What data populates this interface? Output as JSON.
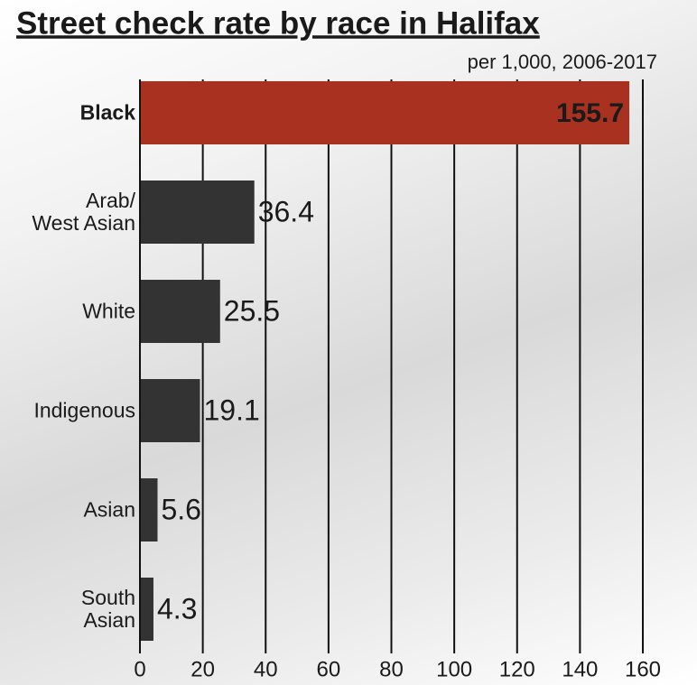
{
  "chart_data": {
    "type": "bar",
    "orientation": "horizontal",
    "title": "Street check rate by race in Halifax",
    "subtitle": "per 1,000, 2006-2017",
    "categories": [
      "Black",
      "Arab/\nWest Asian",
      "White",
      "Indigenous",
      "Asian",
      "South\nAsian"
    ],
    "values": [
      155.7,
      36.4,
      25.5,
      19.1,
      5.6,
      4.3
    ],
    "colors": [
      "#a9311f",
      "#333333",
      "#333333",
      "#333333",
      "#333333",
      "#333333"
    ],
    "xlim": [
      0,
      160
    ],
    "xticks": [
      0,
      20,
      40,
      60,
      80,
      100,
      120,
      140,
      160
    ],
    "grid": true
  }
}
